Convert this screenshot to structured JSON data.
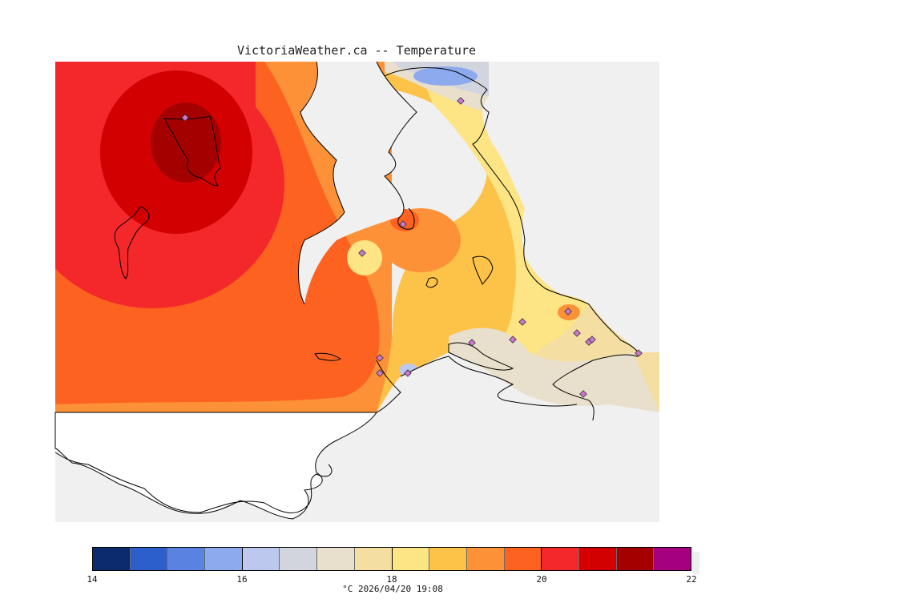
{
  "title": "VictoriaWeather.ca -- Temperature",
  "footer": {
    "unit": "°C",
    "timestamp": "2026/04/20 19:08",
    "text": "°C  2026/04/20 19:08"
  },
  "legend": {
    "min": 14,
    "max": 22,
    "tick_labels": [
      "14",
      "16",
      "18",
      "20",
      "22"
    ],
    "tick_values": [
      14,
      16,
      18,
      20,
      22
    ],
    "colors": [
      "#0c2a6e",
      "#2d5fcc",
      "#5a82e0",
      "#8eaaee",
      "#bcc8ee",
      "#d2d4de",
      "#e8e0cc",
      "#f5dea2",
      "#fde484",
      "#fdc349",
      "#fd9138",
      "#fd6220",
      "#f4282a",
      "#d20000",
      "#a40000",
      "#a50080"
    ]
  },
  "colors": {
    "land_mask": "#f0f0f0",
    "coastline": "#000000",
    "station_marker": "#cc77cc"
  },
  "stations_count": 16
}
